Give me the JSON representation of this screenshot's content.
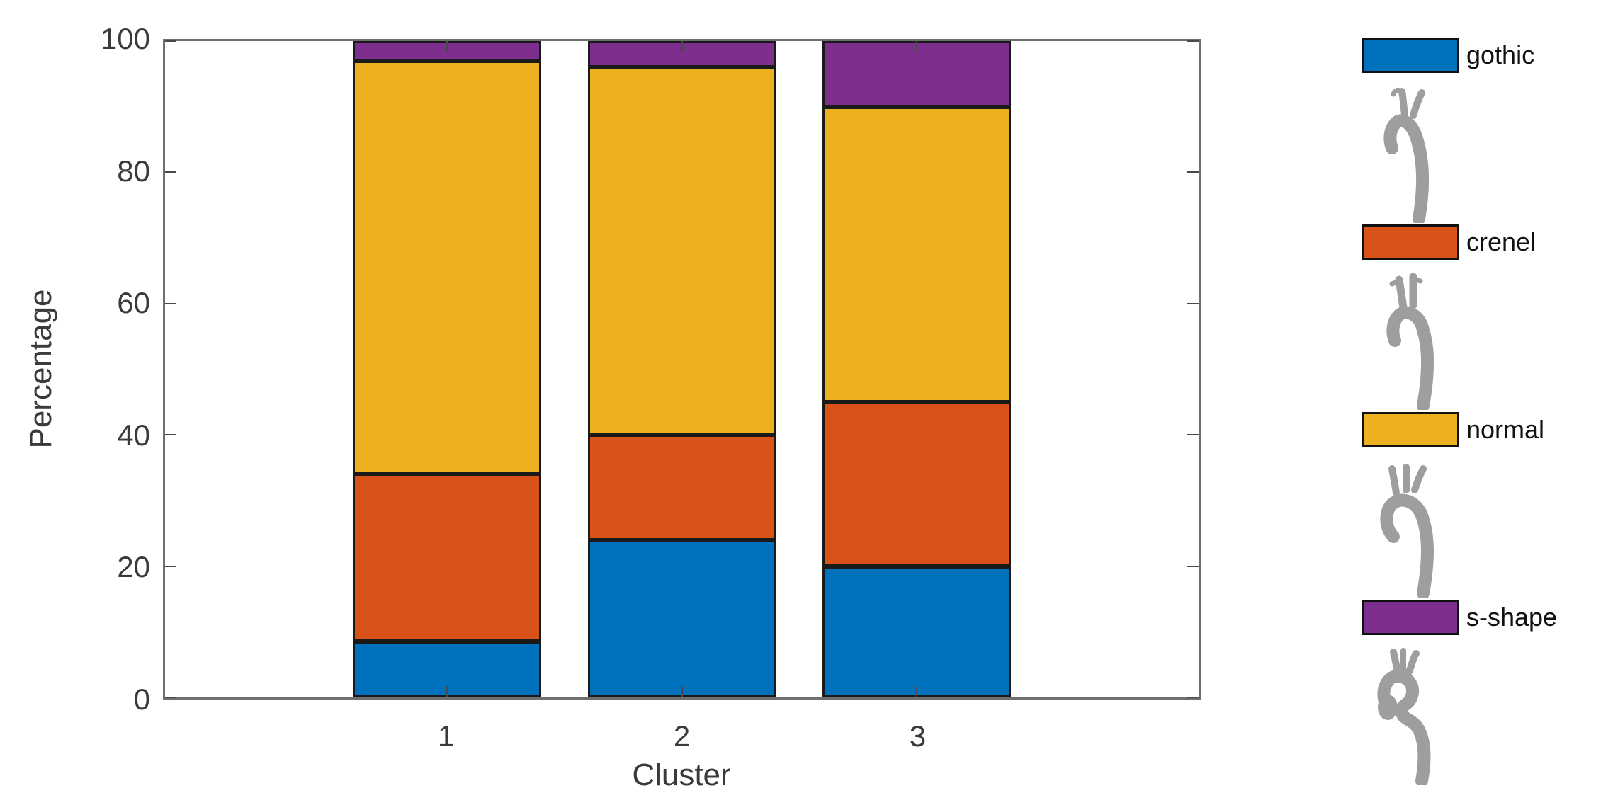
{
  "chart_data": {
    "type": "bar",
    "stacked": true,
    "title": "",
    "xlabel": "Cluster",
    "ylabel": "Percentage",
    "categories": [
      "1",
      "2",
      "3"
    ],
    "series": [
      {
        "name": "gothic",
        "color": "#0072BD",
        "values": [
          8.5,
          24,
          20
        ],
        "icon": "gothic-aorta-icon"
      },
      {
        "name": "crenel",
        "color": "#D95319",
        "values": [
          25.5,
          16,
          25
        ],
        "icon": "crenel-aorta-icon"
      },
      {
        "name": "normal",
        "color": "#EDB120",
        "values": [
          63,
          56,
          45
        ],
        "icon": "normal-aorta-icon"
      },
      {
        "name": "s-shape",
        "color": "#7E2F8E",
        "values": [
          3,
          4,
          10
        ],
        "icon": "s-shape-aorta-icon"
      }
    ],
    "ylim": [
      0,
      100
    ],
    "yticks": [
      0,
      20,
      40,
      60,
      80,
      100
    ],
    "xlim_units": [
      -0.2,
      4.2
    ],
    "bar_width_units": 0.8,
    "grid": false,
    "legend_position": "right-outside",
    "bar_edge_color": "#1a1a1a",
    "spine_color": "#6f6f6f",
    "tick_color": "#4a4a4a",
    "text_color": "#3a3a3a"
  },
  "legend": {
    "icon_color": "#9e9e9e",
    "items": [
      {
        "label": "gothic",
        "icon": "gothic-aorta-icon"
      },
      {
        "label": "crenel",
        "icon": "crenel-aorta-icon"
      },
      {
        "label": "normal",
        "icon": "normal-aorta-icon"
      },
      {
        "label": "s-shape",
        "icon": "s-shape-aorta-icon"
      }
    ]
  }
}
